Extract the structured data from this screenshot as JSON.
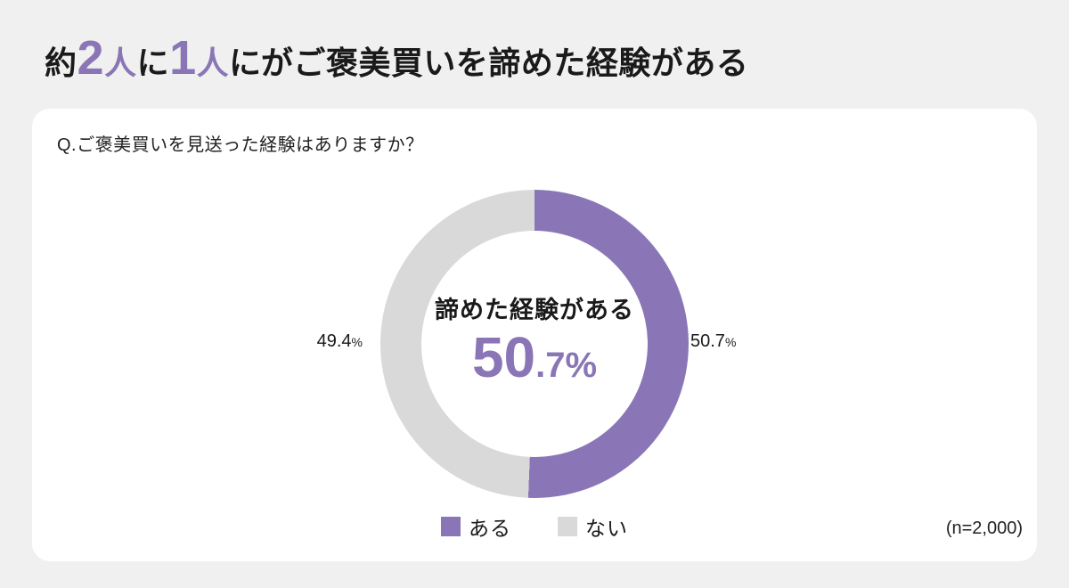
{
  "page": {
    "background": "#f0f0f0",
    "card_background": "#ffffff"
  },
  "header": {
    "title_full": "約2人に1人にがご褒美買いを諦めた経験がある",
    "title_parts": {
      "prefix": "約",
      "num1": "2",
      "unit1": "人",
      "mid": "に",
      "num2": "1",
      "unit2": "人",
      "suffix": "にがご褒美買いを諦めた経験がある"
    },
    "accent_color": "#8a76b6",
    "text_color": "#1a1a1a"
  },
  "card": {
    "question": "Q.ご褒美買いを見送った経験はありますか？",
    "sample_note": "(n=2,000)"
  },
  "donut": {
    "center_label": "諦めた経験がある",
    "center_value_main": "50",
    "center_value_sub": ".7%",
    "left_label": {
      "value": "49.4",
      "pct": "%"
    },
    "right_label": {
      "value": "50.7",
      "pct": "%"
    }
  },
  "legend": {
    "items": [
      {
        "label": "ある",
        "color": "#8a76b6"
      },
      {
        "label": "ない",
        "color": "#d9d9d9"
      }
    ]
  },
  "chart_data": {
    "type": "pie",
    "subtype": "donut",
    "title": "Q.ご褒美買いを見送った経験はありますか？",
    "labels": [
      "ある",
      "ない"
    ],
    "values": [
      50.7,
      49.4
    ],
    "colors": [
      "#8a76b6",
      "#d9d9d9"
    ],
    "center_label": "諦めた経験がある",
    "center_value": "50.7%",
    "sample_size": "(n=2,000)",
    "legend_position": "bottom",
    "start_angle": "top",
    "direction": "clockwise"
  }
}
